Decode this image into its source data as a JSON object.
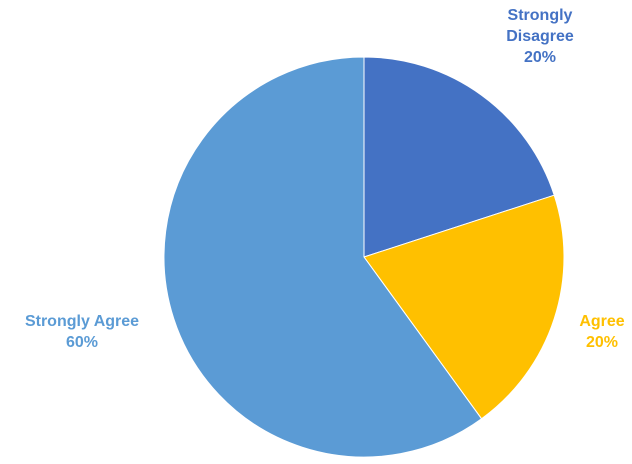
{
  "chart_data": {
    "type": "pie",
    "categories": [
      "Strongly Disagree",
      "Agree",
      "Strongly Agree"
    ],
    "values": [
      20,
      20,
      60
    ],
    "colors": [
      "#4472c4",
      "#ffc000",
      "#5b9bd5"
    ],
    "label_colors": [
      "#4472c4",
      "#ffc000",
      "#5b9bd5"
    ],
    "labels": [
      {
        "lines": [
          "Strongly",
          "Disagree"
        ],
        "percent": "20%"
      },
      {
        "lines": [
          "Agree"
        ],
        "percent": "20%"
      },
      {
        "lines": [
          "Strongly Agree"
        ],
        "percent": "60%"
      }
    ],
    "start_angle": "top",
    "direction": "clockwise",
    "title": "",
    "legend": "none"
  }
}
